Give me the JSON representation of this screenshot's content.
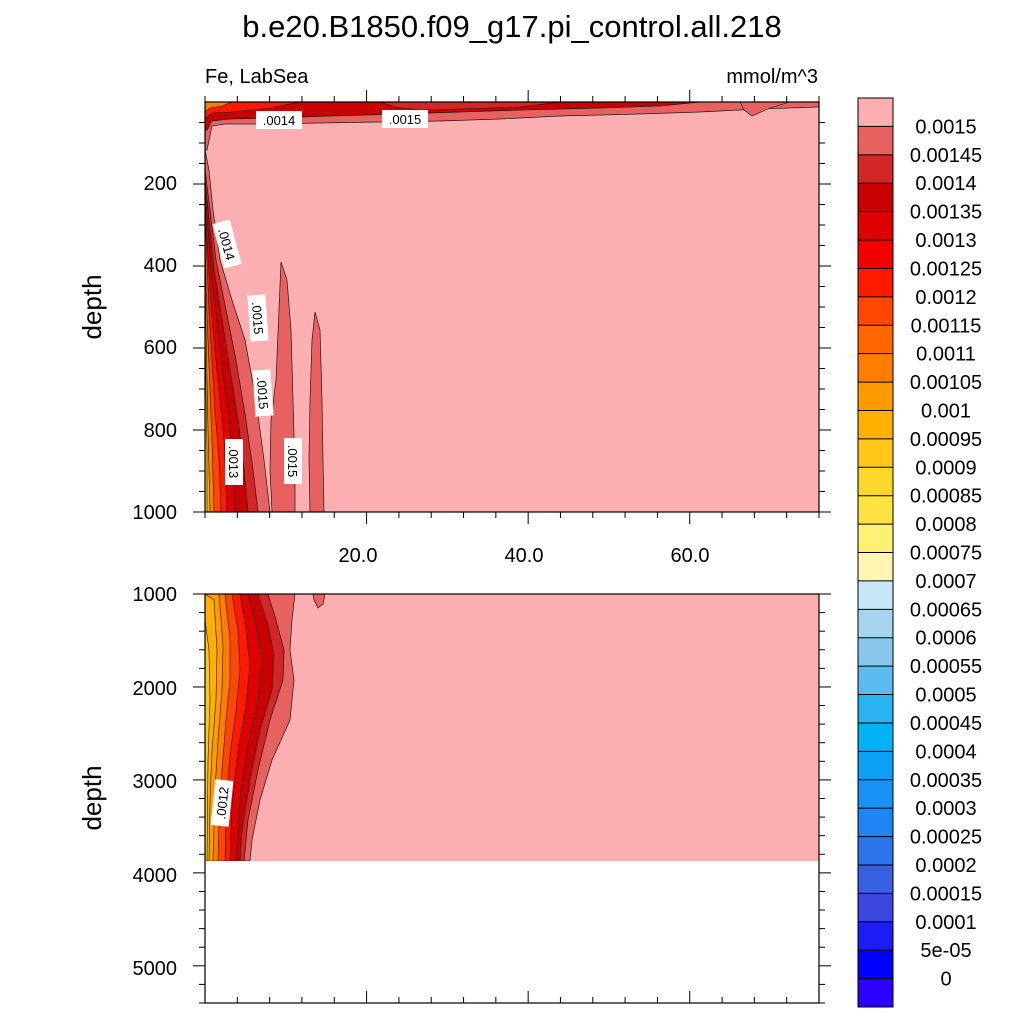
{
  "chart_data": {
    "type": "contour",
    "title": "b.e20.B1850.f09_g17.pi_control.all.218",
    "left_string": "Fe, LabSea",
    "right_string": "mmol/m^3",
    "colors": {
      "fill_max": "#fcafb0",
      "background": "#ffffff"
    },
    "panels": [
      {
        "name": "upper",
        "ylabel": "depth",
        "ylim": [
          0,
          1000
        ],
        "xlim": [
          0,
          76
        ],
        "y_inverted": true,
        "yticks": [
          {
            "value": 200,
            "label": "200"
          },
          {
            "value": 400,
            "label": "400"
          },
          {
            "value": 600,
            "label": "600"
          },
          {
            "value": 800,
            "label": "800"
          },
          {
            "value": 1000,
            "label": "1000"
          }
        ],
        "xticks": [
          {
            "value": 20,
            "label": "20.0"
          },
          {
            "value": 40,
            "label": "40.0"
          },
          {
            "value": 60,
            "label": "60.0"
          }
        ],
        "contour_labels": [
          ".0014",
          ".0015",
          ".0014",
          ".0015",
          ".0015",
          ".0013",
          ".0015"
        ]
      },
      {
        "name": "lower",
        "ylabel": "depth",
        "ylim": [
          1000,
          5400
        ],
        "xlim": [
          0,
          76
        ],
        "y_inverted": true,
        "data_bottom": 3850,
        "yticks": [
          {
            "value": 1000,
            "label": "1000"
          },
          {
            "value": 2000,
            "label": "2000"
          },
          {
            "value": 3000,
            "label": "3000"
          },
          {
            "value": 4000,
            "label": "4000"
          },
          {
            "value": 5000,
            "label": "5000"
          }
        ],
        "contour_labels": [
          ".0012"
        ]
      }
    ],
    "colorbar": {
      "levels": [
        "0.0015",
        "0.00145",
        "0.0014",
        "0.00135",
        "0.0013",
        "0.00125",
        "0.0012",
        "0.00115",
        "0.0011",
        "0.00105",
        "0.001",
        "0.00095",
        "0.0009",
        "0.00085",
        "0.0008",
        "0.00075",
        "0.0007",
        "0.00065",
        "0.0006",
        "0.00055",
        "0.0005",
        "0.00045",
        "0.0004",
        "0.00035",
        "0.0003",
        "0.00025",
        "0.0002",
        "0.00015",
        "0.0001",
        "5e-05",
        "0"
      ],
      "colors": [
        "#fcafb0",
        "#e86161",
        "#d32727",
        "#c80000",
        "#de0000",
        "#f00000",
        "#ff1a00",
        "#ff4700",
        "#ff6600",
        "#ff7e00",
        "#ff9a00",
        "#ffb000",
        "#ffc819",
        "#fed72c",
        "#fee143",
        "#fff176",
        "#fff6b3",
        "#c5e6f5",
        "#a7d5ef",
        "#89c7ec",
        "#5cbcef",
        "#29b3f0",
        "#00b1f3",
        "#0ca0f5",
        "#1992f6",
        "#1f85f3",
        "#2b74ec",
        "#3861e2",
        "#3b47df",
        "#1c1cf5",
        "#0000ff",
        "#2c00ff",
        "#5820f3",
        "#8a3bee"
      ]
    }
  }
}
